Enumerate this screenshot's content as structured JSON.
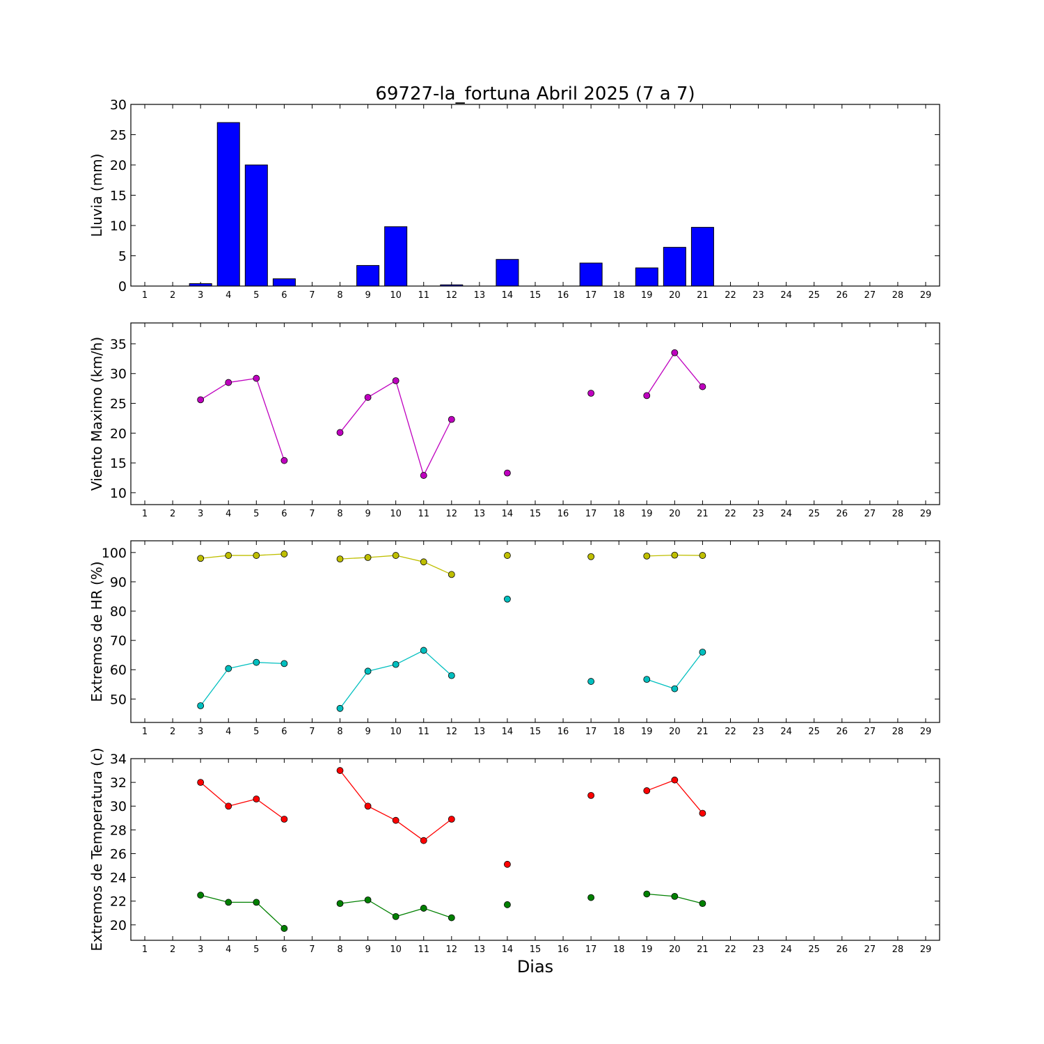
{
  "title": "69727-la_fortuna Abril 2025  (7 a 7)",
  "xlabel": "Dias",
  "days": [
    1,
    2,
    3,
    4,
    5,
    6,
    7,
    8,
    9,
    10,
    11,
    12,
    13,
    14,
    15,
    16,
    17,
    18,
    19,
    20,
    21,
    22,
    23,
    24,
    25,
    26,
    27,
    28,
    29
  ],
  "chart_data": [
    {
      "type": "bar",
      "ylabel": "Lluvia (mm)",
      "ylim": [
        0,
        30
      ],
      "yticks": [
        0,
        5,
        10,
        15,
        20,
        25,
        30
      ],
      "x": [
        1,
        2,
        3,
        4,
        5,
        6,
        7,
        8,
        9,
        10,
        11,
        12,
        13,
        14,
        15,
        16,
        17,
        18,
        19,
        20,
        21,
        22,
        23,
        24,
        25,
        26,
        27,
        28,
        29
      ],
      "series": [
        {
          "color": "#0000ff",
          "values": [
            null,
            null,
            0.4,
            27.0,
            20.0,
            1.2,
            0.0,
            0.0,
            3.4,
            9.8,
            0.0,
            0.2,
            0.0,
            4.4,
            0.0,
            0.0,
            3.8,
            0.0,
            3.0,
            6.4,
            9.7,
            null,
            null,
            null,
            null,
            null,
            null,
            null,
            null
          ]
        }
      ]
    },
    {
      "type": "line",
      "ylabel": "Viento Maximo (km/h)",
      "ylim": [
        8,
        38.5
      ],
      "yticks": [
        10,
        15,
        20,
        25,
        30,
        35
      ],
      "x": [
        1,
        2,
        3,
        4,
        5,
        6,
        7,
        8,
        9,
        10,
        11,
        12,
        13,
        14,
        15,
        16,
        17,
        18,
        19,
        20,
        21,
        22,
        23,
        24,
        25,
        26,
        27,
        28,
        29
      ],
      "series": [
        {
          "color": "#bf00bf",
          "values": [
            null,
            null,
            25.6,
            28.5,
            29.2,
            15.4,
            null,
            20.1,
            26.0,
            28.8,
            12.9,
            22.3,
            null,
            13.3,
            null,
            null,
            26.7,
            null,
            26.3,
            33.5,
            27.8,
            null,
            null,
            null,
            null,
            null,
            null,
            null,
            null
          ]
        }
      ]
    },
    {
      "type": "line",
      "ylabel": "Extremos de HR (%)",
      "ylim": [
        42,
        104
      ],
      "yticks": [
        50,
        60,
        70,
        80,
        90,
        100
      ],
      "x": [
        1,
        2,
        3,
        4,
        5,
        6,
        7,
        8,
        9,
        10,
        11,
        12,
        13,
        14,
        15,
        16,
        17,
        18,
        19,
        20,
        21,
        22,
        23,
        24,
        25,
        26,
        27,
        28,
        29
      ],
      "series": [
        {
          "color": "#bfbf00",
          "values": [
            null,
            null,
            98.0,
            99.0,
            99.0,
            99.5,
            null,
            97.8,
            98.3,
            99.0,
            96.8,
            92.5,
            null,
            99.0,
            null,
            null,
            98.6,
            null,
            98.8,
            99.1,
            99.0,
            null,
            null,
            null,
            null,
            null,
            null,
            null,
            null
          ]
        },
        {
          "color": "#00bfbf",
          "values": [
            null,
            null,
            47.7,
            60.4,
            62.5,
            62.1,
            null,
            46.8,
            59.5,
            61.8,
            66.6,
            58.0,
            null,
            84.1,
            null,
            null,
            56.0,
            null,
            56.7,
            53.5,
            66.0,
            null,
            null,
            null,
            null,
            null,
            null,
            null,
            null
          ]
        }
      ]
    },
    {
      "type": "line",
      "ylabel": "Extremos de Temperatura (c)",
      "ylim": [
        18.7,
        34
      ],
      "yticks": [
        20,
        22,
        24,
        26,
        28,
        30,
        32,
        34
      ],
      "x": [
        1,
        2,
        3,
        4,
        5,
        6,
        7,
        8,
        9,
        10,
        11,
        12,
        13,
        14,
        15,
        16,
        17,
        18,
        19,
        20,
        21,
        22,
        23,
        24,
        25,
        26,
        27,
        28,
        29
      ],
      "series": [
        {
          "color": "#ff0000",
          "values": [
            null,
            null,
            32.0,
            30.0,
            30.6,
            28.9,
            null,
            33.0,
            30.0,
            28.8,
            27.1,
            28.9,
            null,
            25.1,
            null,
            null,
            30.9,
            null,
            31.3,
            32.2,
            29.4,
            null,
            null,
            null,
            null,
            null,
            null,
            null,
            null
          ]
        },
        {
          "color": "#008000",
          "values": [
            null,
            null,
            22.5,
            21.9,
            21.9,
            19.7,
            null,
            21.8,
            22.1,
            20.7,
            21.4,
            20.6,
            null,
            21.7,
            null,
            null,
            22.3,
            null,
            22.6,
            22.4,
            21.8,
            null,
            null,
            null,
            null,
            null,
            null,
            null,
            null
          ]
        }
      ]
    }
  ]
}
